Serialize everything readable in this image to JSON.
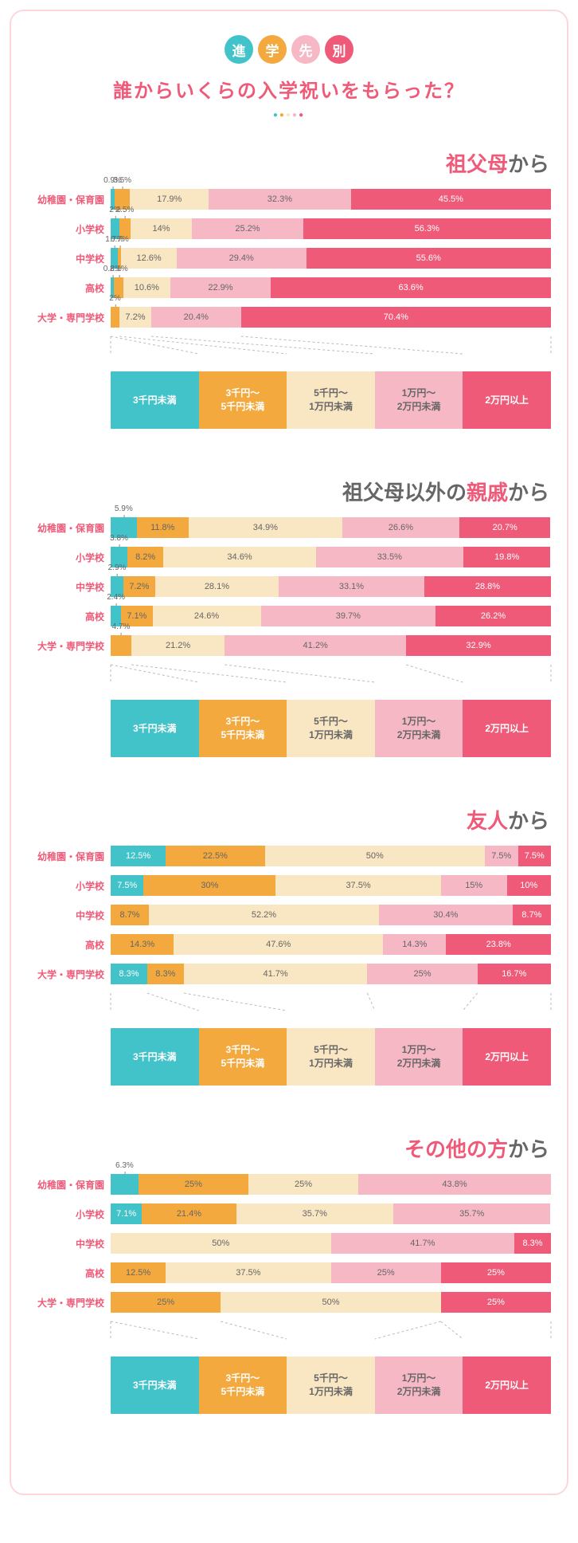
{
  "colors": {
    "c1": "#41c3c9",
    "c2": "#f3a93e",
    "c3": "#f9e6c2",
    "c4": "#f7b8c6",
    "c5": "#ee5a78",
    "pink_text": "#ee5a78",
    "gray_text": "#666666",
    "frame": "#fcd6da"
  },
  "pill_labels": [
    "進",
    "学",
    "先",
    "別"
  ],
  "pill_colors": [
    "#41c3c9",
    "#f3a93e",
    "#f7b8c6",
    "#ee5a78"
  ],
  "title": "誰からいくらの入学祝いをもらった？",
  "row_labels": [
    "幼稚園・保育園",
    "小学校",
    "中学校",
    "高校",
    "大学・専門学校"
  ],
  "legend_labels": [
    "3千円未満",
    "3千円～\n5千円未満",
    "5千円～\n1万円未満",
    "1万円～\n2万円未満",
    "2万円以上"
  ],
  "legend_text_light": [
    false,
    false,
    true,
    true,
    false
  ],
  "sections": [
    {
      "title_html": "<span class='accent'>祖父母</span><span class='mix'>から</span>",
      "rows": [
        {
          "v": [
            0.9,
            3.5,
            17.9,
            32.3,
            45.5
          ],
          "callouts": [
            0,
            1
          ]
        },
        {
          "v": [
            2,
            2.5,
            14,
            25.2,
            56.3
          ],
          "callouts": [
            0,
            1
          ]
        },
        {
          "v": [
            1.7,
            0.7,
            12.6,
            29.4,
            55.6
          ],
          "callouts": [
            0,
            1
          ]
        },
        {
          "v": [
            0.8,
            2.1,
            10.6,
            22.9,
            63.6
          ],
          "callouts": [
            0,
            1
          ]
        },
        {
          "v": [
            0,
            2,
            7.2,
            20.4,
            70.4
          ],
          "callouts": [
            1
          ],
          "hide": [
            0
          ]
        }
      ]
    },
    {
      "title_html": "<span class='mix'>祖父母以外の</span><span class='accent'>親戚</span><span class='mix'>から</span>",
      "rows": [
        {
          "v": [
            5.9,
            11.8,
            34.9,
            26.6,
            20.7
          ],
          "callouts": [
            0
          ]
        },
        {
          "v": [
            3.8,
            8.2,
            34.6,
            33.5,
            19.8
          ],
          "callouts": [
            0
          ]
        },
        {
          "v": [
            2.9,
            7.2,
            28.1,
            33.1,
            28.8
          ],
          "callouts": [
            0
          ]
        },
        {
          "v": [
            2.4,
            7.1,
            24.6,
            39.7,
            26.2
          ],
          "callouts": [
            0
          ]
        },
        {
          "v": [
            0,
            4.7,
            21.2,
            41.2,
            32.9
          ],
          "callouts": [
            1
          ],
          "hide": [
            0
          ]
        }
      ]
    },
    {
      "title_html": "<span class='accent'>友人</span><span class='mix'>から</span>",
      "rows": [
        {
          "v": [
            12.5,
            22.5,
            50,
            7.5,
            7.5
          ],
          "callouts": []
        },
        {
          "v": [
            7.5,
            30,
            37.5,
            15,
            10
          ],
          "callouts": []
        },
        {
          "v": [
            0,
            8.7,
            52.2,
            30.4,
            8.7
          ],
          "callouts": [],
          "hide": [
            0
          ]
        },
        {
          "v": [
            0,
            14.3,
            47.6,
            14.3,
            23.8
          ],
          "callouts": [],
          "hide": [
            0
          ]
        },
        {
          "v": [
            8.3,
            8.3,
            41.7,
            25,
            16.7
          ],
          "callouts": []
        }
      ]
    },
    {
      "title_html": "<span class='accent'>その他の方</span><span class='mix'>から</span>",
      "rows": [
        {
          "v": [
            6.3,
            25,
            25,
            43.8,
            0
          ],
          "callouts": [
            0
          ],
          "hide": [
            4
          ]
        },
        {
          "v": [
            7.1,
            21.4,
            35.7,
            35.7,
            0
          ],
          "callouts": [],
          "hide": [
            4
          ]
        },
        {
          "v": [
            0,
            0,
            50,
            41.7,
            8.3
          ],
          "callouts": [],
          "hide": [
            0,
            1
          ]
        },
        {
          "v": [
            0,
            12.5,
            37.5,
            25,
            25
          ],
          "callouts": [],
          "hide": [
            0
          ]
        },
        {
          "v": [
            0,
            25,
            50,
            0,
            25
          ],
          "callouts": [],
          "hide": [
            0,
            3
          ]
        }
      ]
    }
  ]
}
